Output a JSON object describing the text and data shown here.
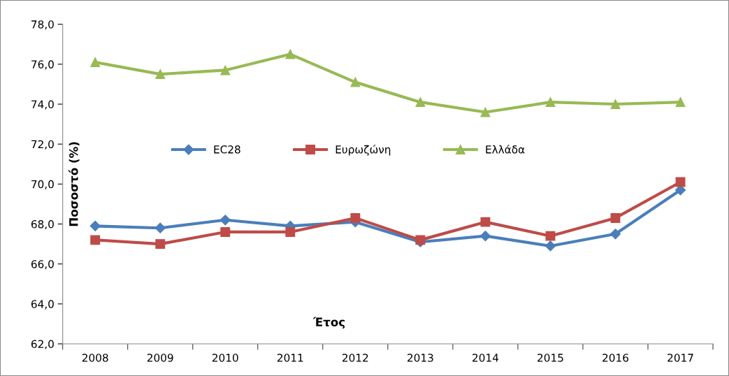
{
  "chart_data": {
    "type": "line",
    "xlabel": "Έτος",
    "ylabel": "Ποσοστό (%)",
    "categories": [
      "2008",
      "2009",
      "2010",
      "2011",
      "2012",
      "2013",
      "2014",
      "2015",
      "2016",
      "2017"
    ],
    "series": [
      {
        "name": "ΕC28",
        "color": "#4a7ebb",
        "marker": "diamond",
        "values": [
          67.9,
          67.8,
          68.2,
          67.9,
          68.1,
          67.1,
          67.4,
          66.9,
          67.5,
          69.7
        ]
      },
      {
        "name": "Ευρωζώνη",
        "color": "#be4b48",
        "marker": "square",
        "values": [
          67.2,
          67.0,
          67.6,
          67.6,
          68.3,
          67.2,
          68.1,
          67.4,
          68.3,
          70.1
        ]
      },
      {
        "name": "Ελλάδα",
        "color": "#98b954",
        "marker": "triangle",
        "values": [
          76.1,
          75.5,
          75.7,
          76.5,
          75.1,
          74.1,
          73.6,
          74.1,
          74.0,
          74.1
        ]
      }
    ],
    "ylim": [
      62,
      78
    ],
    "yticks": [
      {
        "value": 62,
        "label": "62,0"
      },
      {
        "value": 64,
        "label": "64,0"
      },
      {
        "value": 66,
        "label": "66,0"
      },
      {
        "value": 68,
        "label": "68,0"
      },
      {
        "value": 70,
        "label": "70,0"
      },
      {
        "value": 72,
        "label": "72,0"
      },
      {
        "value": 74,
        "label": "74,0"
      },
      {
        "value": 76,
        "label": "76,0"
      },
      {
        "value": 78,
        "label": "78,0"
      }
    ],
    "grid": false,
    "legend": "center",
    "line_style": "solid"
  }
}
